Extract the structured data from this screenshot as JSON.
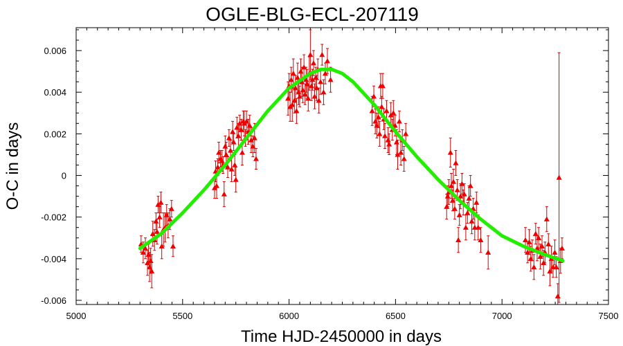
{
  "chart_data": {
    "type": "scatter",
    "title": "OGLE-BLG-ECL-207119",
    "xlabel": "Time HJD-2450000 in days",
    "ylabel": "O-C in days",
    "xlim": [
      5000,
      7500
    ],
    "ylim": [
      -0.0062,
      0.0071
    ],
    "xticks": [
      5000,
      5500,
      6000,
      6500,
      7000,
      7500
    ],
    "xtick_labels": [
      "5000",
      "5500",
      "6000",
      "6500",
      "7000",
      "7500"
    ],
    "yticks": [
      -0.006,
      -0.004,
      -0.002,
      0,
      0.002,
      0.004,
      0.006
    ],
    "ytick_labels": [
      "-0.006",
      "-0.004",
      "-0.002",
      "0",
      "0.002",
      "0.004",
      "0.006"
    ],
    "grid": false,
    "colors": {
      "points": "#ee0000",
      "errorbars": "#d40000",
      "model": "#22ee00"
    },
    "series": [
      {
        "kind": "points-with-errorbars",
        "points": [
          [
            5305,
            -0.0033,
            0.0004
          ],
          [
            5315,
            -0.0037,
            0.0005
          ],
          [
            5325,
            -0.0035,
            0.0005
          ],
          [
            5335,
            -0.0042,
            0.0006
          ],
          [
            5340,
            -0.0038,
            0.0005
          ],
          [
            5345,
            -0.0044,
            0.0007
          ],
          [
            5350,
            -0.0041,
            0.0006
          ],
          [
            5355,
            -0.0046,
            0.0008
          ],
          [
            5360,
            -0.0028,
            0.0006
          ],
          [
            5368,
            -0.0031,
            0.0005
          ],
          [
            5375,
            -0.0022,
            0.0004
          ],
          [
            5380,
            -0.0027,
            0.0006
          ],
          [
            5385,
            -0.0014,
            0.0004
          ],
          [
            5392,
            -0.002,
            0.0005
          ],
          [
            5398,
            -0.0013,
            0.0005
          ],
          [
            5402,
            -0.0034,
            0.0006
          ],
          [
            5410,
            -0.0026,
            0.0008
          ],
          [
            5418,
            -0.0025,
            0.0007
          ],
          [
            5425,
            -0.0019,
            0.0005
          ],
          [
            5432,
            -0.0024,
            0.0006
          ],
          [
            5440,
            -0.0021,
            0.0005
          ],
          [
            5448,
            -0.0016,
            0.0004
          ],
          [
            5455,
            -0.0034,
            0.0005
          ],
          [
            5650,
            -0.0006,
            0.0005
          ],
          [
            5655,
            0.0002,
            0.0005
          ],
          [
            5660,
            -0.0005,
            0.0006
          ],
          [
            5665,
            0.0004,
            0.0004
          ],
          [
            5670,
            0.0011,
            0.0005
          ],
          [
            5678,
            0.0008,
            0.0004
          ],
          [
            5685,
            0.0007,
            0.0005
          ],
          [
            5690,
            0.0005,
            0.0004
          ],
          [
            5695,
            -0.0009,
            0.0006
          ],
          [
            5700,
            0.0014,
            0.0005
          ],
          [
            5705,
            0.001,
            0.0006
          ],
          [
            5712,
            0.0004,
            0.0005
          ],
          [
            5718,
            0.0018,
            0.0004
          ],
          [
            5725,
            0.0012,
            0.0005
          ],
          [
            5730,
            0.0003,
            0.0006
          ],
          [
            5735,
            0.0021,
            0.0005
          ],
          [
            5740,
            0.0016,
            0.0004
          ],
          [
            5745,
            0.0005,
            0.0005
          ],
          [
            5750,
            -0.0002,
            0.0006
          ],
          [
            5755,
            0.0023,
            0.0005
          ],
          [
            5762,
            0.0019,
            0.0006
          ],
          [
            5768,
            0.0025,
            0.0004
          ],
          [
            5775,
            0.0022,
            0.0005
          ],
          [
            5780,
            0.0011,
            0.0006
          ],
          [
            5785,
            0.0026,
            0.0005
          ],
          [
            5790,
            0.0025,
            0.0006
          ],
          [
            5795,
            0.0018,
            0.0004
          ],
          [
            5800,
            0.0026,
            0.0005
          ],
          [
            5808,
            0.0021,
            0.0006
          ],
          [
            5815,
            0.0024,
            0.0005
          ],
          [
            5822,
            0.0017,
            0.0006
          ],
          [
            5830,
            0.0014,
            0.0005
          ],
          [
            5838,
            0.0018,
            0.0007
          ],
          [
            5845,
            0.0008,
            0.0005
          ],
          [
            5995,
            0.0037,
            0.0008
          ],
          [
            6000,
            0.0043,
            0.0006
          ],
          [
            6005,
            0.0033,
            0.0007
          ],
          [
            6010,
            0.0046,
            0.0006
          ],
          [
            6015,
            0.0034,
            0.0008
          ],
          [
            6020,
            0.0049,
            0.0007
          ],
          [
            6025,
            0.0036,
            0.0006
          ],
          [
            6030,
            0.0042,
            0.0006
          ],
          [
            6035,
            0.0031,
            0.0006
          ],
          [
            6040,
            0.0047,
            0.0007
          ],
          [
            6045,
            0.004,
            0.0006
          ],
          [
            6050,
            0.0038,
            0.0005
          ],
          [
            6055,
            0.005,
            0.0006
          ],
          [
            6060,
            0.0045,
            0.0007
          ],
          [
            6065,
            0.0041,
            0.0006
          ],
          [
            6070,
            0.0052,
            0.0006
          ],
          [
            6075,
            0.0039,
            0.0005
          ],
          [
            6080,
            0.0046,
            0.0006
          ],
          [
            6085,
            0.0044,
            0.0007
          ],
          [
            6090,
            0.0037,
            0.0006
          ],
          [
            6095,
            0.0049,
            0.0008
          ],
          [
            6100,
            0.0058,
            0.0012
          ],
          [
            6105,
            0.0043,
            0.0007
          ],
          [
            6110,
            0.0046,
            0.0005
          ],
          [
            6115,
            0.0054,
            0.0006
          ],
          [
            6120,
            0.0038,
            0.0006
          ],
          [
            6125,
            0.0047,
            0.0005
          ],
          [
            6130,
            0.0042,
            0.0006
          ],
          [
            6135,
            0.0051,
            0.0005
          ],
          [
            6140,
            0.0036,
            0.0006
          ],
          [
            6148,
            0.0045,
            0.0006
          ],
          [
            6155,
            0.0058,
            0.0005
          ],
          [
            6162,
            0.004,
            0.0006
          ],
          [
            6170,
            0.0049,
            0.0005
          ],
          [
            6180,
            0.0055,
            0.0006
          ],
          [
            6195,
            0.0046,
            0.0006
          ],
          [
            6390,
            0.0031,
            0.0007
          ],
          [
            6398,
            0.0038,
            0.0005
          ],
          [
            6405,
            0.0026,
            0.0006
          ],
          [
            6412,
            0.0024,
            0.0006
          ],
          [
            6420,
            0.0028,
            0.0005
          ],
          [
            6425,
            0.002,
            0.0006
          ],
          [
            6430,
            0.0043,
            0.0006
          ],
          [
            6435,
            0.0033,
            0.0005
          ],
          [
            6440,
            0.0043,
            0.0006
          ],
          [
            6445,
            0.0027,
            0.0005
          ],
          [
            6450,
            0.0019,
            0.0006
          ],
          [
            6458,
            0.0031,
            0.0005
          ],
          [
            6465,
            0.0017,
            0.0006
          ],
          [
            6470,
            0.0015,
            0.0005
          ],
          [
            6478,
            0.0029,
            0.0006
          ],
          [
            6485,
            0.0022,
            0.0005
          ],
          [
            6490,
            0.003,
            0.0006
          ],
          [
            6498,
            0.0024,
            0.0005
          ],
          [
            6505,
            0.0016,
            0.0006
          ],
          [
            6510,
            0.001,
            0.0007
          ],
          [
            6518,
            0.0026,
            0.0005
          ],
          [
            6525,
            0.0011,
            0.0006
          ],
          [
            6532,
            0.0017,
            0.0005
          ],
          [
            6540,
            0.0008,
            0.0006
          ],
          [
            6548,
            0.002,
            0.0005
          ],
          [
            6740,
            -0.0015,
            0.0006
          ],
          [
            6745,
            -0.001,
            0.0005
          ],
          [
            6750,
            -0.0008,
            0.0006
          ],
          [
            6758,
            0.0011,
            0.0007
          ],
          [
            6762,
            -0.0005,
            0.0006
          ],
          [
            6768,
            -0.0012,
            0.0005
          ],
          [
            6772,
            -0.0003,
            0.0006
          ],
          [
            6778,
            -0.0016,
            0.0005
          ],
          [
            6783,
            0.0006,
            0.0006
          ],
          [
            6790,
            -0.0007,
            0.0005
          ],
          [
            6795,
            -0.0031,
            0.0006
          ],
          [
            6800,
            -0.0019,
            0.0005
          ],
          [
            6805,
            -0.001,
            0.0006
          ],
          [
            6812,
            -0.0004,
            0.0005
          ],
          [
            6818,
            -0.0013,
            0.0006
          ],
          [
            6823,
            -0.0009,
            0.0005
          ],
          [
            6830,
            -0.0025,
            0.0006
          ],
          [
            6838,
            -0.0018,
            0.0005
          ],
          [
            6845,
            -0.0011,
            0.0006
          ],
          [
            6852,
            -0.0005,
            0.0005
          ],
          [
            6858,
            -0.0022,
            0.0006
          ],
          [
            6865,
            -0.0016,
            0.0005
          ],
          [
            6872,
            -0.0025,
            0.0006
          ],
          [
            6880,
            -0.0013,
            0.0005
          ],
          [
            6888,
            -0.0025,
            0.0006
          ],
          [
            6900,
            -0.0031,
            0.0006
          ],
          [
            6935,
            -0.0037,
            0.0008
          ],
          [
            7110,
            -0.0031,
            0.0006
          ],
          [
            7120,
            -0.0037,
            0.0005
          ],
          [
            7128,
            -0.0032,
            0.0006
          ],
          [
            7135,
            -0.004,
            0.0006
          ],
          [
            7142,
            -0.0036,
            0.0005
          ],
          [
            7150,
            -0.0044,
            0.0006
          ],
          [
            7158,
            -0.0028,
            0.0005
          ],
          [
            7165,
            -0.0035,
            0.0006
          ],
          [
            7172,
            -0.003,
            0.0005
          ],
          [
            7180,
            -0.0039,
            0.0006
          ],
          [
            7188,
            -0.0034,
            0.0005
          ],
          [
            7195,
            -0.0042,
            0.0006
          ],
          [
            7202,
            -0.0037,
            0.0005
          ],
          [
            7210,
            -0.0021,
            0.0006
          ],
          [
            7218,
            -0.0033,
            0.0005
          ],
          [
            7225,
            -0.0046,
            0.0007
          ],
          [
            7232,
            -0.004,
            0.0006
          ],
          [
            7240,
            -0.0044,
            0.0005
          ],
          [
            7248,
            -0.0037,
            0.0006
          ],
          [
            7255,
            -0.0044,
            0.0005
          ],
          [
            7262,
            -0.0058,
            0.0006
          ],
          [
            7268,
            -0.0001,
            0.006
          ],
          [
            7275,
            -0.0041,
            0.0006
          ],
          [
            7282,
            -0.0035,
            0.0005
          ]
        ]
      },
      {
        "kind": "model-curve",
        "points": [
          [
            5300,
            -0.0035
          ],
          [
            5400,
            -0.0028
          ],
          [
            5500,
            -0.0018
          ],
          [
            5600,
            -0.0007
          ],
          [
            5700,
            0.0005
          ],
          [
            5800,
            0.0018
          ],
          [
            5900,
            0.0031
          ],
          [
            6000,
            0.0042
          ],
          [
            6100,
            0.0049
          ],
          [
            6150,
            0.0051
          ],
          [
            6200,
            0.0051
          ],
          [
            6250,
            0.0049
          ],
          [
            6300,
            0.0045
          ],
          [
            6400,
            0.0034
          ],
          [
            6500,
            0.0021
          ],
          [
            6600,
            0.0009
          ],
          [
            6700,
            -0.0002
          ],
          [
            6800,
            -0.0012
          ],
          [
            6900,
            -0.0021
          ],
          [
            7000,
            -0.0029
          ],
          [
            7100,
            -0.0034
          ],
          [
            7200,
            -0.0038
          ],
          [
            7285,
            -0.0041
          ]
        ]
      }
    ]
  }
}
